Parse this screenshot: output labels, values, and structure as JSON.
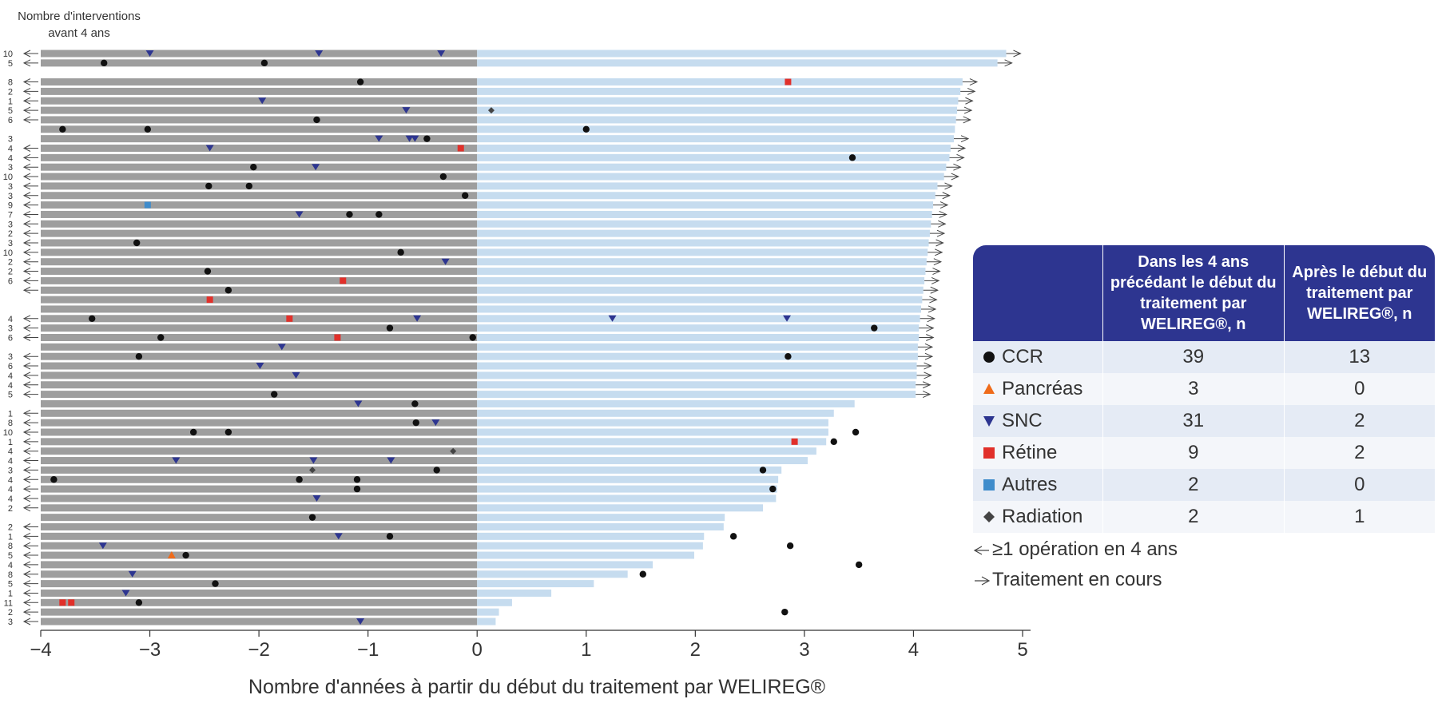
{
  "y_title_line1": "Nombre d'interventions",
  "y_title_line2": "avant 4 ans",
  "legend": {
    "header_col1": "",
    "header_col2": "Dans les 4 ans précédant le début du traitement par WELIREG®, n",
    "header_col3": "Après le début du traitement par WELIREG®, n",
    "rows": [
      {
        "label": "CCR",
        "before": "39",
        "after": "13",
        "icon": "circle",
        "color": "#111111"
      },
      {
        "label": "Pancréas",
        "before": "3",
        "after": "0",
        "icon": "triangle-up",
        "color": "#ef6b1a"
      },
      {
        "label": "SNC",
        "before": "31",
        "after": "2",
        "icon": "triangle-down",
        "color": "#2d3590"
      },
      {
        "label": "Rétine",
        "before": "9",
        "after": "2",
        "icon": "square",
        "color": "#e1302a"
      },
      {
        "label": "Autres",
        "before": "2",
        "after": "0",
        "icon": "square",
        "color": "#3f8ccb"
      },
      {
        "label": "Radiation",
        "before": "2",
        "after": "1",
        "icon": "diamond",
        "color": "#444444"
      }
    ],
    "note_prior": "≥1 opération en 4 ans",
    "note_ongoing": "Traitement en cours"
  },
  "colors": {
    "before_bar": "#9e9e9e",
    "after_bar": "#c6dcef",
    "axis": "#333333",
    "header": "#2d3590"
  },
  "chart_data": {
    "type": "swimmer",
    "xlabel": "Nombre d'années à partir du début du traitement par WELIREG®",
    "xlim": [
      -4,
      5
    ],
    "x_ticks": [
      "−4",
      "−3",
      "−2",
      "−1",
      "0",
      "1",
      "2",
      "3",
      "4",
      "5"
    ],
    "x_tick_values": [
      -4,
      -3,
      -2,
      -1,
      0,
      1,
      2,
      3,
      4,
      5
    ],
    "before_start": -4,
    "patients": [
      {
        "label": "10",
        "prior": true,
        "end": 4.85,
        "ongoing": true,
        "events": [
          [
            -3,
            "snc"
          ],
          [
            -1.45,
            "snc"
          ],
          [
            -0.33,
            "snc"
          ]
        ]
      },
      {
        "label": "5",
        "prior": true,
        "end": 4.77,
        "ongoing": true,
        "events": [
          [
            -3.42,
            "ccr"
          ],
          [
            -1.95,
            "ccr"
          ]
        ]
      },
      {
        "gap": true
      },
      {
        "label": "8",
        "prior": true,
        "end": 4.45,
        "ongoing": true,
        "events": [
          [
            -1.07,
            "ccr"
          ],
          [
            2.85,
            "retine"
          ]
        ]
      },
      {
        "label": "2",
        "prior": true,
        "end": 4.43,
        "ongoing": true,
        "events": []
      },
      {
        "label": "1",
        "prior": true,
        "end": 4.41,
        "ongoing": true,
        "events": [
          [
            -1.97,
            "snc"
          ]
        ]
      },
      {
        "label": "5",
        "prior": true,
        "end": 4.4,
        "ongoing": true,
        "events": [
          [
            -0.65,
            "snc"
          ],
          [
            0.13,
            "radiation"
          ]
        ]
      },
      {
        "label": "6",
        "prior": true,
        "end": 4.39,
        "ongoing": true,
        "events": [
          [
            -1.47,
            "ccr"
          ]
        ]
      },
      {
        "label": "",
        "prior": false,
        "end": 4.38,
        "ongoing": false,
        "events": [
          [
            -3.8,
            "ccr"
          ],
          [
            -3.02,
            "ccr"
          ],
          [
            1,
            "ccr"
          ]
        ]
      },
      {
        "label": "3",
        "prior": false,
        "end": 4.37,
        "ongoing": true,
        "events": [
          [
            -0.9,
            "snc"
          ],
          [
            -0.62,
            "snc"
          ],
          [
            -0.57,
            "snc"
          ],
          [
            -0.46,
            "ccr"
          ]
        ]
      },
      {
        "label": "4",
        "prior": true,
        "end": 4.34,
        "ongoing": true,
        "events": [
          [
            -2.45,
            "snc"
          ],
          [
            -0.15,
            "retine"
          ]
        ]
      },
      {
        "label": "4",
        "prior": true,
        "end": 4.33,
        "ongoing": true,
        "events": [
          [
            3.44,
            "ccr"
          ]
        ]
      },
      {
        "label": "3",
        "prior": true,
        "end": 4.3,
        "ongoing": true,
        "events": [
          [
            -2.05,
            "ccr"
          ],
          [
            -1.48,
            "snc"
          ]
        ]
      },
      {
        "label": "10",
        "prior": true,
        "end": 4.28,
        "ongoing": true,
        "events": [
          [
            -0.31,
            "ccr"
          ]
        ]
      },
      {
        "label": "3",
        "prior": true,
        "end": 4.22,
        "ongoing": true,
        "events": [
          [
            -2.46,
            "ccr"
          ],
          [
            -2.09,
            "ccr"
          ]
        ]
      },
      {
        "label": "3",
        "prior": true,
        "end": 4.2,
        "ongoing": true,
        "events": [
          [
            -0.11,
            "ccr"
          ]
        ]
      },
      {
        "label": "9",
        "prior": true,
        "end": 4.18,
        "ongoing": true,
        "events": [
          [
            -3.02,
            "autres"
          ]
        ]
      },
      {
        "label": "7",
        "prior": true,
        "end": 4.17,
        "ongoing": true,
        "events": [
          [
            -1.63,
            "snc"
          ],
          [
            -1.17,
            "ccr"
          ],
          [
            -0.9,
            "ccr"
          ]
        ]
      },
      {
        "label": "3",
        "prior": true,
        "end": 4.16,
        "ongoing": true,
        "events": []
      },
      {
        "label": "2",
        "prior": true,
        "end": 4.15,
        "ongoing": true,
        "events": []
      },
      {
        "label": "3",
        "prior": true,
        "end": 4.14,
        "ongoing": true,
        "events": [
          [
            -3.12,
            "ccr"
          ]
        ]
      },
      {
        "label": "10",
        "prior": true,
        "end": 4.13,
        "ongoing": true,
        "events": [
          [
            -0.7,
            "ccr"
          ]
        ]
      },
      {
        "label": "2",
        "prior": true,
        "end": 4.12,
        "ongoing": true,
        "events": [
          [
            -0.29,
            "snc"
          ]
        ]
      },
      {
        "label": "2",
        "prior": true,
        "end": 4.11,
        "ongoing": true,
        "events": [
          [
            -2.47,
            "ccr"
          ]
        ]
      },
      {
        "label": "6",
        "prior": true,
        "end": 4.1,
        "ongoing": true,
        "events": [
          [
            -1.23,
            "retine"
          ]
        ]
      },
      {
        "label": "",
        "prior": true,
        "end": 4.09,
        "ongoing": true,
        "events": [
          [
            -2.28,
            "ccr"
          ]
        ]
      },
      {
        "label": "",
        "prior": false,
        "end": 4.08,
        "ongoing": true,
        "events": [
          [
            -2.45,
            "retine"
          ]
        ]
      },
      {
        "label": "",
        "prior": false,
        "end": 4.07,
        "ongoing": true,
        "events": []
      },
      {
        "label": "4",
        "prior": true,
        "end": 4.06,
        "ongoing": true,
        "events": [
          [
            -3.53,
            "ccr"
          ],
          [
            -1.72,
            "retine"
          ],
          [
            -0.55,
            "snc"
          ],
          [
            1.24,
            "snc"
          ],
          [
            2.84,
            "snc"
          ]
        ]
      },
      {
        "label": "3",
        "prior": true,
        "end": 4.05,
        "ongoing": true,
        "events": [
          [
            -0.8,
            "ccr"
          ],
          [
            3.64,
            "ccr"
          ]
        ]
      },
      {
        "label": "6",
        "prior": true,
        "end": 4.05,
        "ongoing": true,
        "events": [
          [
            -2.9,
            "ccr"
          ],
          [
            -1.28,
            "retine"
          ],
          [
            -0.04,
            "ccr"
          ]
        ]
      },
      {
        "label": "",
        "prior": false,
        "end": 4.04,
        "ongoing": true,
        "events": [
          [
            -1.79,
            "snc"
          ]
        ]
      },
      {
        "label": "3",
        "prior": true,
        "end": 4.04,
        "ongoing": true,
        "events": [
          [
            -3.1,
            "ccr"
          ],
          [
            2.85,
            "ccr"
          ]
        ]
      },
      {
        "label": "6",
        "prior": true,
        "end": 4.03,
        "ongoing": true,
        "events": [
          [
            -1.99,
            "snc"
          ]
        ]
      },
      {
        "label": "4",
        "prior": true,
        "end": 4.03,
        "ongoing": true,
        "events": [
          [
            -1.66,
            "snc"
          ]
        ]
      },
      {
        "label": "4",
        "prior": true,
        "end": 4.02,
        "ongoing": true,
        "events": []
      },
      {
        "label": "5",
        "prior": true,
        "end": 4.02,
        "ongoing": true,
        "events": [
          [
            -1.86,
            "ccr"
          ]
        ]
      },
      {
        "label": "",
        "prior": false,
        "end": 3.46,
        "ongoing": false,
        "events": [
          [
            -1.09,
            "snc"
          ],
          [
            -0.57,
            "ccr"
          ]
        ]
      },
      {
        "label": "1",
        "prior": true,
        "end": 3.27,
        "ongoing": false,
        "events": []
      },
      {
        "label": "8",
        "prior": true,
        "end": 3.22,
        "ongoing": false,
        "events": [
          [
            -0.56,
            "ccr"
          ],
          [
            -0.38,
            "snc"
          ]
        ]
      },
      {
        "label": "10",
        "prior": true,
        "end": 3.22,
        "ongoing": false,
        "events": [
          [
            -2.6,
            "ccr"
          ],
          [
            -2.28,
            "ccr"
          ],
          [
            3.47,
            "ccr"
          ]
        ]
      },
      {
        "label": "1",
        "prior": true,
        "end": 3.2,
        "ongoing": false,
        "events": [
          [
            2.91,
            "retine"
          ],
          [
            3.27,
            "ccr"
          ]
        ]
      },
      {
        "label": "4",
        "prior": true,
        "end": 3.11,
        "ongoing": false,
        "events": [
          [
            -0.22,
            "radiation"
          ]
        ]
      },
      {
        "label": "4",
        "prior": true,
        "end": 3.03,
        "ongoing": false,
        "events": [
          [
            -2.76,
            "snc"
          ],
          [
            -1.5,
            "snc"
          ],
          [
            -0.79,
            "snc"
          ]
        ]
      },
      {
        "label": "3",
        "prior": true,
        "end": 2.79,
        "ongoing": false,
        "events": [
          [
            -1.51,
            "radiation"
          ],
          [
            -0.37,
            "ccr"
          ],
          [
            2.62,
            "ccr"
          ]
        ]
      },
      {
        "label": "4",
        "prior": true,
        "end": 2.76,
        "ongoing": false,
        "events": [
          [
            -3.88,
            "ccr"
          ],
          [
            -1.63,
            "ccr"
          ],
          [
            -1.1,
            "ccr"
          ]
        ]
      },
      {
        "label": "4",
        "prior": true,
        "end": 2.75,
        "ongoing": false,
        "events": [
          [
            -1.1,
            "ccr"
          ],
          [
            2.71,
            "ccr"
          ]
        ]
      },
      {
        "label": "4",
        "prior": true,
        "end": 2.74,
        "ongoing": false,
        "events": [
          [
            -1.47,
            "snc"
          ]
        ]
      },
      {
        "label": "2",
        "prior": true,
        "end": 2.62,
        "ongoing": false,
        "events": []
      },
      {
        "label": "",
        "prior": false,
        "end": 2.27,
        "ongoing": false,
        "events": [
          [
            -1.51,
            "ccr"
          ]
        ]
      },
      {
        "label": "2",
        "prior": true,
        "end": 2.26,
        "ongoing": false,
        "events": []
      },
      {
        "label": "1",
        "prior": true,
        "end": 2.08,
        "ongoing": false,
        "events": [
          [
            -1.27,
            "snc"
          ],
          [
            -0.8,
            "ccr"
          ],
          [
            2.35,
            "ccr"
          ]
        ]
      },
      {
        "label": "8",
        "prior": true,
        "end": 2.07,
        "ongoing": false,
        "events": [
          [
            -3.43,
            "snc"
          ],
          [
            2.87,
            "ccr"
          ]
        ]
      },
      {
        "label": "5",
        "prior": true,
        "end": 1.99,
        "ongoing": false,
        "events": [
          [
            -2.8,
            "pancreas"
          ],
          [
            -2.67,
            "ccr"
          ]
        ]
      },
      {
        "label": "4",
        "prior": true,
        "end": 1.61,
        "ongoing": false,
        "events": [
          [
            3.5,
            "ccr"
          ]
        ]
      },
      {
        "label": "8",
        "prior": true,
        "end": 1.38,
        "ongoing": false,
        "events": [
          [
            -3.16,
            "snc"
          ],
          [
            1.52,
            "ccr"
          ]
        ]
      },
      {
        "label": "5",
        "prior": true,
        "end": 1.07,
        "ongoing": false,
        "events": [
          [
            -2.4,
            "ccr"
          ]
        ]
      },
      {
        "label": "1",
        "prior": true,
        "end": 0.68,
        "ongoing": false,
        "events": [
          [
            -3.22,
            "snc"
          ]
        ]
      },
      {
        "label": "11",
        "prior": true,
        "end": 0.32,
        "ongoing": false,
        "events": [
          [
            -3.8,
            "retine"
          ],
          [
            -3.72,
            "retine"
          ],
          [
            -3.1,
            "ccr"
          ]
        ]
      },
      {
        "label": "2",
        "prior": true,
        "end": 0.2,
        "ongoing": false,
        "events": [
          [
            2.82,
            "ccr"
          ]
        ]
      },
      {
        "label": "3",
        "prior": true,
        "end": 0.17,
        "ongoing": false,
        "events": [
          [
            -1.07,
            "snc"
          ]
        ]
      }
    ]
  }
}
